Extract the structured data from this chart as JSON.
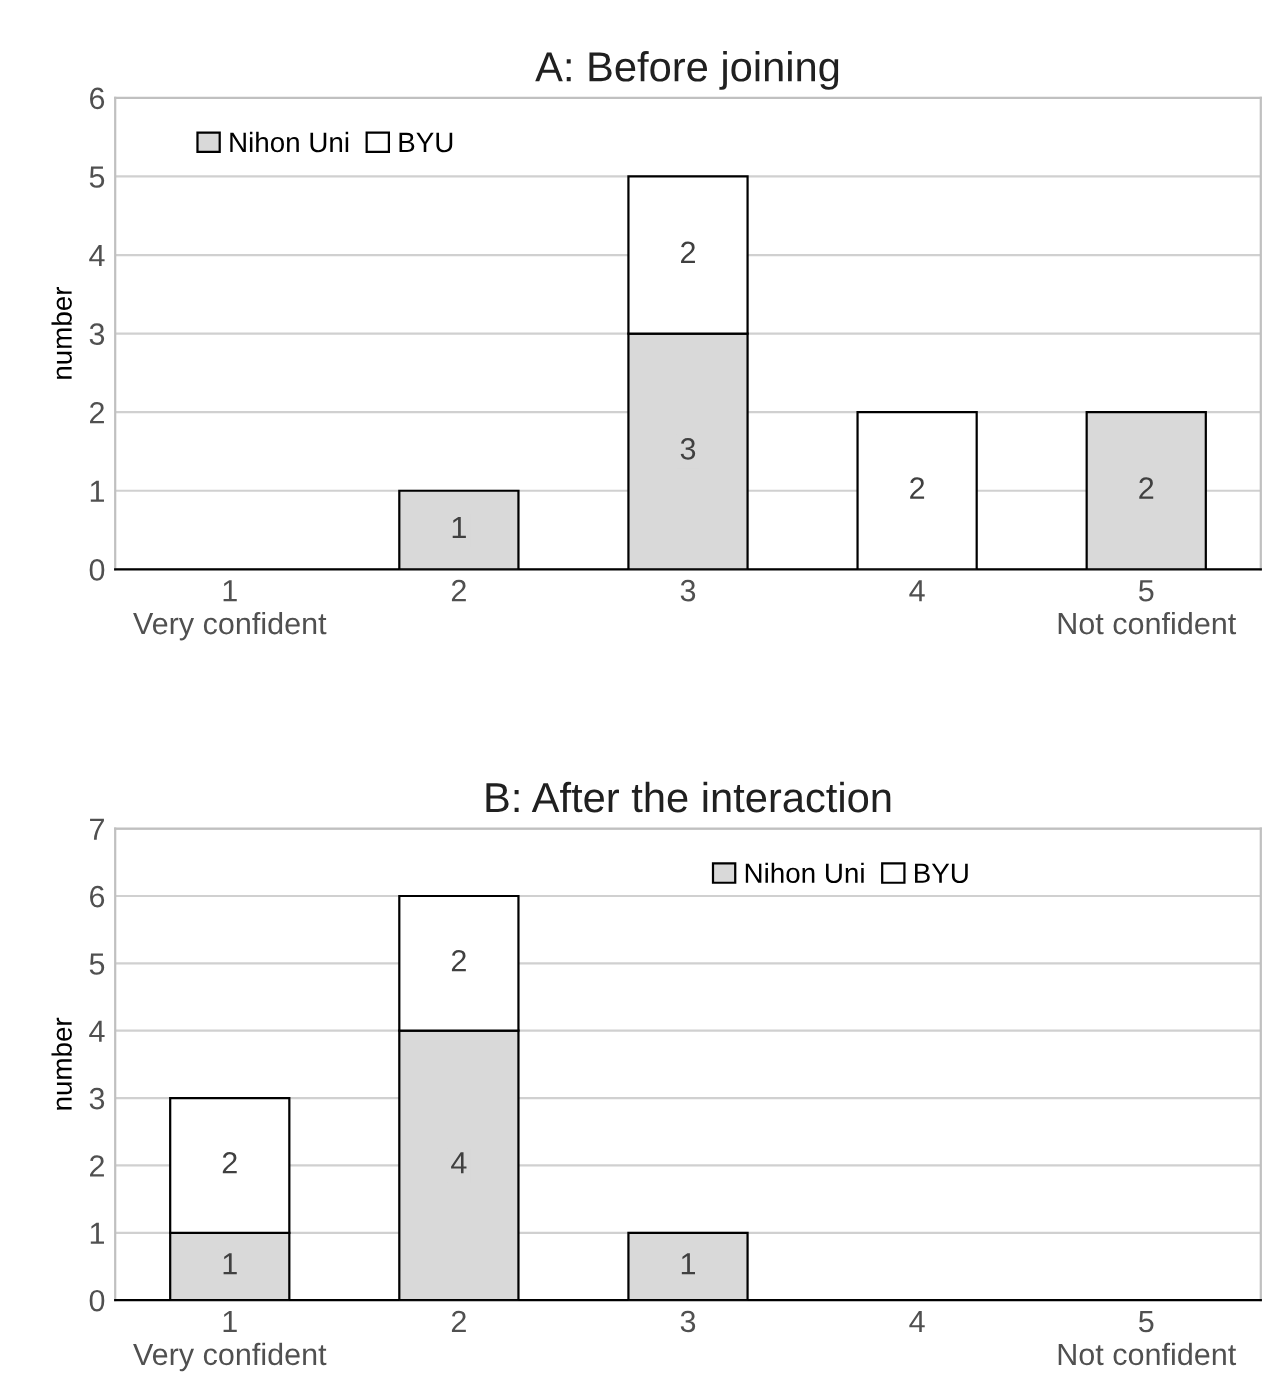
{
  "chart_data": [
    {
      "type": "bar",
      "title": "A: Before joining",
      "ylabel": "number",
      "stacked": true,
      "categories": [
        "1\nVery confident",
        "2",
        "3",
        "4",
        "5\nNot confident"
      ],
      "ylim": [
        0,
        6
      ],
      "yticks": [
        0,
        1,
        2,
        3,
        4,
        5,
        6
      ],
      "grid": "y",
      "legend": "top left",
      "series": [
        {
          "name": "Nihon Uni",
          "color": "#d9d9d9",
          "values": [
            0,
            1,
            3,
            0,
            2
          ],
          "value_labels": [
            null,
            "1",
            "3",
            null,
            "2"
          ]
        },
        {
          "name": "BYU",
          "color": "#ffffff",
          "values": [
            0,
            0,
            2,
            2,
            0
          ],
          "value_labels": [
            null,
            null,
            "2",
            "2",
            null
          ]
        }
      ]
    },
    {
      "type": "bar",
      "title": "B: After the interaction",
      "ylabel": "number",
      "stacked": true,
      "categories": [
        "1\nVery confident",
        "2",
        "3",
        "4",
        "5\nNot confident"
      ],
      "ylim": [
        0,
        7
      ],
      "yticks": [
        0,
        1,
        2,
        3,
        4,
        5,
        6,
        7
      ],
      "grid": "y",
      "legend": "top",
      "series": [
        {
          "name": "Nihon Uni",
          "color": "#d9d9d9",
          "values": [
            1,
            4,
            1,
            0,
            0
          ],
          "value_labels": [
            "1",
            "4",
            "1",
            null,
            null
          ]
        },
        {
          "name": "BYU",
          "color": "#ffffff",
          "values": [
            2,
            2,
            0,
            0,
            0
          ],
          "value_labels": [
            "2",
            "2",
            null,
            null,
            null
          ]
        }
      ]
    }
  ]
}
